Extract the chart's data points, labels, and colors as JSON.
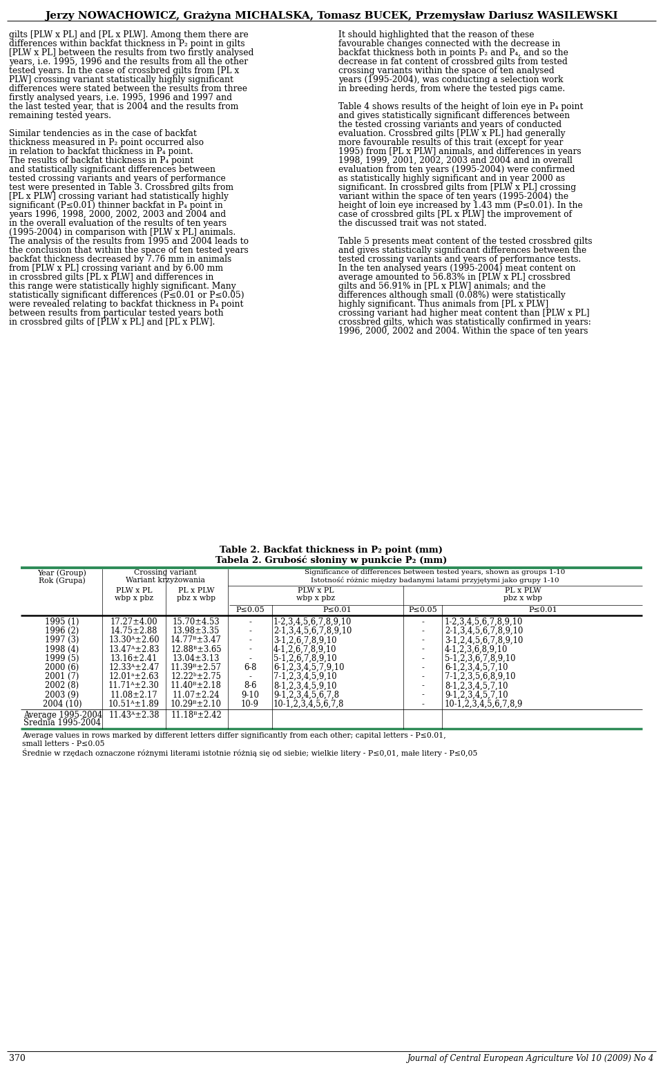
{
  "title_authors": "Jerzy NOWACHOWICZ, Grażyna MICHALSKA, Tomasz BUCEK, Przemysław Dariusz WASILEWSKI",
  "table_title_en": "Table 2. Backfat thickness in P₂ point (mm)",
  "table_title_pl": "Tabela 2. Grubość słoniny w punkcie P₂ (mm)",
  "significance_en": "Significance of differences between tested years, shown as groups 1-10",
  "significance_pl": "Istotność różnic między badanymi latami przyjętymi jako grupy 1-10",
  "rows": [
    {
      "year": "1995 (1)",
      "plw_pl": "17.27±4.00",
      "pl_plw": "15.70±4.53",
      "sig_p005_1": "-",
      "sig_p001_1": "1-2,3,4,5,6,7,8,9,10",
      "sig_p005_2": "-",
      "sig_p001_2": "1-2,3,4,5,6,7,8,9,10"
    },
    {
      "year": "1996 (2)",
      "plw_pl": "14.75±2.88",
      "pl_plw": "13.98±3.35",
      "sig_p005_1": "-",
      "sig_p001_1": "2-1,3,4,5,6,7,8,9,10",
      "sig_p005_2": "-",
      "sig_p001_2": "2-1,3,4,5,6,7,8,9,10"
    },
    {
      "year": "1997 (3)",
      "plw_pl": "13.30ᴬ±2.60",
      "pl_plw": "14.77ᴮ±3.47",
      "sig_p005_1": "-",
      "sig_p001_1": "3-1,2,6,7,8,9,10",
      "sig_p005_2": "-",
      "sig_p001_2": "3-1,2,4,5,6,7,8,9,10"
    },
    {
      "year": "1998 (4)",
      "plw_pl": "13.47ᴬ±2.83",
      "pl_plw": "12.88ᴮ±3.65",
      "sig_p005_1": "-",
      "sig_p001_1": "4-1,2,6,7,8,9,10",
      "sig_p005_2": "-",
      "sig_p001_2": "4-1,2,3,6,8,9,10"
    },
    {
      "year": "1999 (5)",
      "plw_pl": "13.16±2.41",
      "pl_plw": "13.04±3.13",
      "sig_p005_1": "-",
      "sig_p001_1": "5-1,2,6,7,8,9,10",
      "sig_p005_2": "-",
      "sig_p001_2": "5-1,2,3,6,7,8,9,10"
    },
    {
      "year": "2000 (6)",
      "plw_pl": "12.33ᴬ±2.47",
      "pl_plw": "11.39ᴮ±2.57",
      "sig_p005_1": "6-8",
      "sig_p001_1": "6-1,2,3,4,5,7,9,10",
      "sig_p005_2": "-",
      "sig_p001_2": "6-1,2,3,4,5,7,10"
    },
    {
      "year": "2001 (7)",
      "plw_pl": "12.01ᵃ±2.63",
      "pl_plw": "12.22ᵇ±2.75",
      "sig_p005_1": "-",
      "sig_p001_1": "7-1,2,3,4,5,9,10",
      "sig_p005_2": "-",
      "sig_p001_2": "7-1,2,3,5,6,8,9,10"
    },
    {
      "year": "2002 (8)",
      "plw_pl": "11.71ᴬ±2.30",
      "pl_plw": "11.40ᴮ±2.18",
      "sig_p005_1": "8-6",
      "sig_p001_1": "8-1,2,3,4,5,9,10",
      "sig_p005_2": "-",
      "sig_p001_2": "8-1,2,3,4,5,7,10"
    },
    {
      "year": "2003 (9)",
      "plw_pl": "11.08±2.17",
      "pl_plw": "11.07±2.24",
      "sig_p005_1": "9-10",
      "sig_p001_1": "9-1,2,3,4,5,6,7,8",
      "sig_p005_2": "-",
      "sig_p001_2": "9-1,2,3,4,5,7,10"
    },
    {
      "year": "2004 (10)",
      "plw_pl": "10.51ᴬ±1.89",
      "pl_plw": "10.29ᴮ±2.10",
      "sig_p005_1": "10-9",
      "sig_p001_1": "10-1,2,3,4,5,6,7,8",
      "sig_p005_2": "-",
      "sig_p001_2": "10-1,2,3,4,5,6,7,8,9"
    }
  ],
  "avg_year_en": "Average 1995-2004",
  "avg_year_pl": "Średnia 1995-2004",
  "avg_plw_pl": "11.43ᴬ±2.38",
  "avg_pl_plw": "11.18ᴮ±2.42",
  "footnotes": [
    "Average values in rows marked by different letters differ significantly from each other; capital letters - P≤0.01,",
    "small letters - P≤0.05",
    "Średnie w rzędach oznaczone różnymi literami istotnie różnią się od siebie; wielkie litery - P≤0,01, małe litery - P≤0,05"
  ],
  "page_number": "370",
  "journal": "Journal of Central European Agriculture Vol 10 (2009) No 4",
  "teal_color": "#2d8b57",
  "left_col": [
    "gilts [PLW x PL] and [PL x PLW]. Among them there are",
    "differences within backfat thickness in P₂ point in gilts",
    "[PLW x PL] between the results from two firstly analysed",
    "years, i.e. 1995, 1996 and the results from all the other",
    "tested years. In the case of crossbred gilts from [PL x",
    "PLW] crossing variant statistically highly significant",
    "differences were stated between the results from three",
    "firstly analysed years, i.e. 1995, 1996 and 1997 and",
    "the last tested year, that is 2004 and the results from",
    "remaining tested years.",
    "",
    "Similar tendencies as in the case of backfat",
    "thickness measured in P₂ point occurred also",
    "in relation to backfat thickness in P₄ point.",
    "The results of backfat thickness in P₄ point",
    "and statistically significant differences between",
    "tested crossing variants and years of performance",
    "test were presented in Table 3. Crossbred gilts from",
    "[PL x PLW] crossing variant had statistically highly",
    "significant (P≤0.01) thinner backfat in P₄ point in",
    "years 1996, 1998, 2000, 2002, 2003 and 2004 and",
    "in the overall evaluation of the results of ten years",
    "(1995-2004) in comparison with [PLW x PL] animals.",
    "The analysis of the results from 1995 and 2004 leads to",
    "the conclusion that within the space of ten tested years",
    "backfat thickness decreased by 7.76 mm in animals",
    "from [PLW x PL] crossing variant and by 6.00 mm",
    "in crossbred gilts [PL x PLW] and differences in",
    "this range were statistically highly significant. Many",
    "statistically significant differences (P≤0.01 or P≤0.05)",
    "were revealed relating to backfat thickness in P₄ point",
    "between results from particular tested years both",
    "in crossbred gilts of [PLW x PL] and [PL x PLW]."
  ],
  "right_col": [
    "It should highlighted that the reason of these",
    "favourable changes connected with the decrease in",
    "backfat thickness both in points P₂ and P₄, and so the",
    "decrease in fat content of crossbred gilts from tested",
    "crossing variants within the space of ten analysed",
    "years (1995-2004), was conducting a selection work",
    "in breeding herds, from where the tested pigs came.",
    "",
    "Table 4 shows results of the height of loin eye in P₄ point",
    "and gives statistically significant differences between",
    "the tested crossing variants and years of conducted",
    "evaluation. Crossbred gilts [PLW x PL] had generally",
    "more favourable results of this trait (except for year",
    "1995) from [PL x PLW] animals, and differences in years",
    "1998, 1999, 2001, 2002, 2003 and 2004 and in overall",
    "evaluation from ten years (1995-2004) were confirmed",
    "as statistically highly significant and in year 2000 as",
    "significant. In crossbred gilts from [PLW x PL] crossing",
    "variant within the space of ten years (1995-2004) the",
    "height of loin eye increased by 1.43 mm (P≤0.01). In the",
    "case of crossbred gilts [PL x PLW] the improvement of",
    "the discussed trait was not stated.",
    "",
    "Table 5 presents meat content of the tested crossbred gilts",
    "and gives statistically significant differences between the",
    "tested crossing variants and years of performance tests.",
    "In the ten analysed years (1995-2004) meat content on",
    "average amounted to 56.83% in [PLW x PL] crossbred",
    "gilts and 56.91% in [PL x PLW] animals; and the",
    "differences although small (0.08%) were statistically",
    "highly significant. Thus animals from [PL x PLW]",
    "crossing variant had higher meat content than [PLW x PL]",
    "crossbred gilts, which was statistically confirmed in years:",
    "1996, 2000, 2002 and 2004. Within the space of ten years"
  ]
}
